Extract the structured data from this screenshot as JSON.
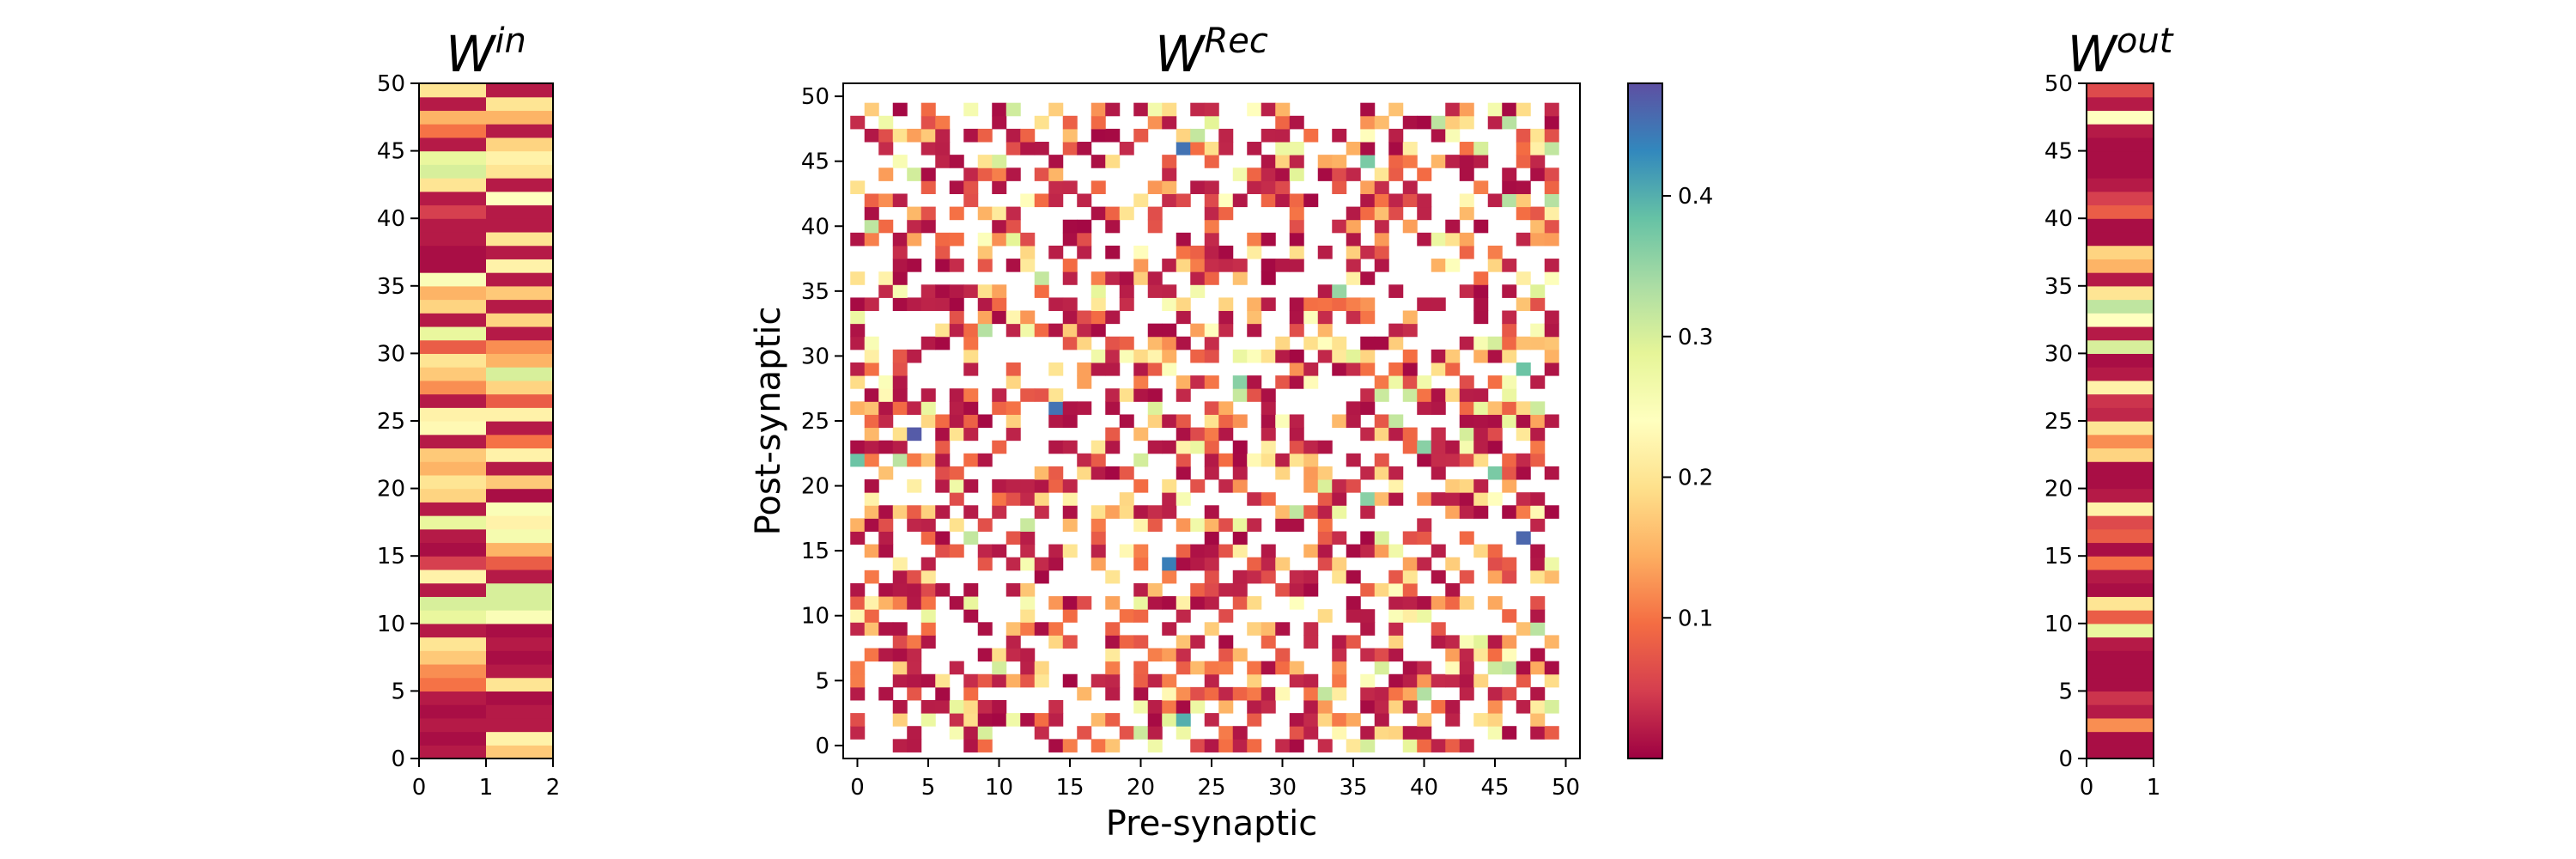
{
  "chart_data": [
    {
      "id": "w-in",
      "type": "heatmap",
      "title": "W",
      "title_superscript": "in",
      "xlabel": "",
      "ylabel": "",
      "x_ticks": [
        "0",
        "1",
        "2"
      ],
      "y_ticks": [
        "0",
        "5",
        "10",
        "15",
        "20",
        "25",
        "30",
        "35",
        "40",
        "45",
        "50"
      ],
      "xlim": [
        0,
        2
      ],
      "ylim": [
        0,
        50
      ],
      "rows": 50,
      "cols": 2,
      "grid": false,
      "colormap": "Spectral",
      "values_by_row_from_bottom": [
        [
          0.02,
          0.17
        ],
        [
          0.01,
          0.22
        ],
        [
          0.02,
          0.02
        ],
        [
          0.01,
          0.02
        ],
        [
          0.02,
          0.01
        ],
        [
          0.1,
          0.2
        ],
        [
          0.12,
          0.02
        ],
        [
          0.17,
          0.01
        ],
        [
          0.2,
          0.02
        ],
        [
          0.02,
          0.01
        ],
        [
          0.28,
          0.25
        ],
        [
          0.3,
          0.3
        ],
        [
          0.02,
          0.3
        ],
        [
          0.22,
          0.02
        ],
        [
          0.05,
          0.08
        ],
        [
          0.01,
          0.15
        ],
        [
          0.02,
          0.26
        ],
        [
          0.28,
          0.22
        ],
        [
          0.02,
          0.25
        ],
        [
          0.18,
          0.01
        ],
        [
          0.2,
          0.17
        ],
        [
          0.15,
          0.02
        ],
        [
          0.17,
          0.22
        ],
        [
          0.02,
          0.1
        ],
        [
          0.23,
          0.02
        ],
        [
          0.22,
          0.22
        ],
        [
          0.02,
          0.08
        ],
        [
          0.12,
          0.18
        ],
        [
          0.17,
          0.3
        ],
        [
          0.2,
          0.15
        ],
        [
          0.08,
          0.12
        ],
        [
          0.28,
          0.02
        ],
        [
          0.02,
          0.18
        ],
        [
          0.18,
          0.02
        ],
        [
          0.15,
          0.17
        ],
        [
          0.25,
          0.02
        ],
        [
          0.01,
          0.22
        ],
        [
          0.01,
          0.02
        ],
        [
          0.02,
          0.2
        ],
        [
          0.02,
          0.02
        ],
        [
          0.05,
          0.02
        ],
        [
          0.02,
          0.24
        ],
        [
          0.2,
          0.02
        ],
        [
          0.3,
          0.2
        ],
        [
          0.28,
          0.22
        ],
        [
          0.02,
          0.18
        ],
        [
          0.1,
          0.02
        ],
        [
          0.15,
          0.15
        ],
        [
          0.02,
          0.2
        ],
        [
          0.2,
          0.02
        ]
      ]
    },
    {
      "id": "w-rec",
      "type": "heatmap",
      "title": "W",
      "title_superscript": "Rec",
      "xlabel": "Pre-synaptic",
      "ylabel": "Post-synaptic",
      "x_ticks": [
        "0",
        "5",
        "10",
        "15",
        "20",
        "25",
        "30",
        "35",
        "40",
        "45",
        "50"
      ],
      "y_ticks": [
        "0",
        "5",
        "10",
        "15",
        "20",
        "25",
        "30",
        "35",
        "40",
        "45",
        "50"
      ],
      "xlim": [
        -1,
        51
      ],
      "ylim": [
        -1,
        51
      ],
      "rows": 50,
      "cols": 50,
      "grid": false,
      "colormap": "Spectral",
      "density_of_nonzero_cells": 0.5,
      "highlighted_cells": [
        {
          "x": 23,
          "y": 46,
          "value": 0.45
        },
        {
          "x": 36,
          "y": 45,
          "value": 0.37
        },
        {
          "x": 14,
          "y": 26,
          "value": 0.45
        },
        {
          "x": 4,
          "y": 24,
          "value": 0.47
        },
        {
          "x": 0,
          "y": 22,
          "value": 0.38
        },
        {
          "x": 47,
          "y": 16,
          "value": 0.46
        },
        {
          "x": 22,
          "y": 14,
          "value": 0.44
        },
        {
          "x": 23,
          "y": 2,
          "value": 0.4
        },
        {
          "x": 40,
          "y": 4,
          "value": 0.33
        },
        {
          "x": 27,
          "y": 28,
          "value": 0.36
        },
        {
          "x": 34,
          "y": 35,
          "value": 0.35
        },
        {
          "x": 47,
          "y": 29,
          "value": 0.38
        },
        {
          "x": 45,
          "y": 21,
          "value": 0.37
        },
        {
          "x": 36,
          "y": 19,
          "value": 0.36
        },
        {
          "x": 40,
          "y": 23,
          "value": 0.36
        }
      ]
    },
    {
      "id": "w-rec-colorbar",
      "type": "colorbar",
      "range": [
        0.0,
        0.48
      ],
      "ticks": [
        "0.1",
        "0.2",
        "0.3",
        "0.4"
      ],
      "colormap": "Spectral"
    },
    {
      "id": "w-out",
      "type": "heatmap",
      "title": "W",
      "title_superscript": "out",
      "xlabel": "",
      "ylabel": "",
      "x_ticks": [
        "0",
        "1"
      ],
      "y_ticks": [
        "0",
        "5",
        "10",
        "15",
        "20",
        "25",
        "30",
        "35",
        "40",
        "45",
        "50"
      ],
      "xlim": [
        0,
        1
      ],
      "ylim": [
        0,
        50
      ],
      "rows": 50,
      "cols": 1,
      "grid": false,
      "colormap": "Spectral",
      "values_by_row_from_bottom": [
        [
          0.01
        ],
        [
          0.01
        ],
        [
          0.12
        ],
        [
          0.02
        ],
        [
          0.04
        ],
        [
          0.01
        ],
        [
          0.01
        ],
        [
          0.01
        ],
        [
          0.02
        ],
        [
          0.28
        ],
        [
          0.08
        ],
        [
          0.2
        ],
        [
          0.01
        ],
        [
          0.02
        ],
        [
          0.1
        ],
        [
          0.01
        ],
        [
          0.08
        ],
        [
          0.06
        ],
        [
          0.22
        ],
        [
          0.02
        ],
        [
          0.01
        ],
        [
          0.01
        ],
        [
          0.18
        ],
        [
          0.12
        ],
        [
          0.2
        ],
        [
          0.03
        ],
        [
          0.04
        ],
        [
          0.22
        ],
        [
          0.02
        ],
        [
          0.01
        ],
        [
          0.3
        ],
        [
          0.02
        ],
        [
          0.24
        ],
        [
          0.32
        ],
        [
          0.2
        ],
        [
          0.02
        ],
        [
          0.15
        ],
        [
          0.18
        ],
        [
          0.01
        ],
        [
          0.01
        ],
        [
          0.08
        ],
        [
          0.05
        ],
        [
          0.02
        ],
        [
          0.01
        ],
        [
          0.01
        ],
        [
          0.01
        ],
        [
          0.02
        ],
        [
          0.24
        ],
        [
          0.02
        ],
        [
          0.06
        ]
      ]
    }
  ]
}
